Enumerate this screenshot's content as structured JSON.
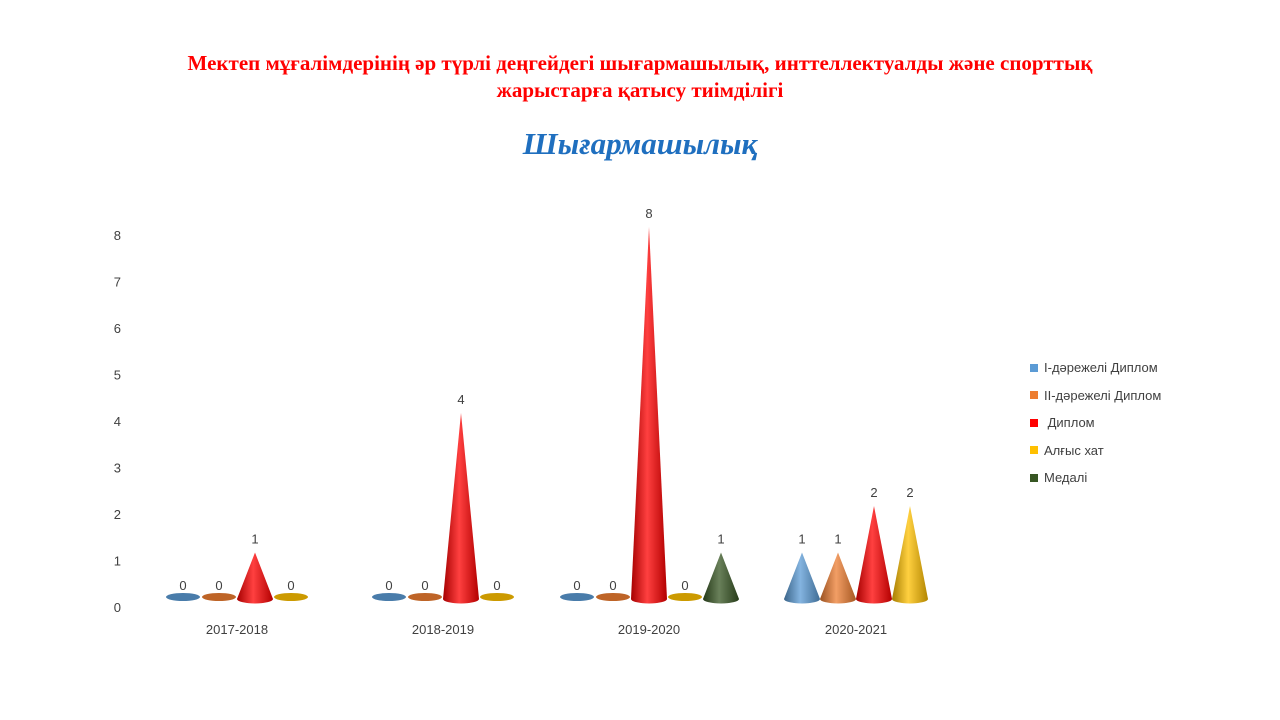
{
  "title_lines": [
    "Мектеп мұғалімдерінің әр түрлі деңгейдегі шығармашылық, инттеллектуалды және спорттық",
    "жарыстарға қатысу тиімділігі"
  ],
  "chart_data": {
    "type": "bar",
    "title": "Шығармашылық",
    "categories": [
      "2017-2018",
      "2018-2019",
      "2019-2020",
      "2020-2021"
    ],
    "y_ticks": [
      0,
      1,
      2,
      3,
      4,
      5,
      6,
      7,
      8
    ],
    "ylim": [
      0,
      8
    ],
    "legend_position": "right",
    "series": [
      {
        "name": "I-дәрежелі Диплом",
        "color": "#5b9bd5",
        "values": [
          0,
          0,
          0,
          1
        ]
      },
      {
        "name": "II-дәрежелі Диплом",
        "color": "#ed7d31",
        "values": [
          0,
          0,
          0,
          1
        ]
      },
      {
        "name": " Диплом",
        "color": "#ff0000",
        "values": [
          1,
          4,
          8,
          2
        ]
      },
      {
        "name": "Алғыс хат",
        "color": "#ffc000",
        "values": [
          0,
          0,
          0,
          2
        ]
      },
      {
        "name": "Медалі",
        "color": "#375623",
        "values": [
          null,
          null,
          1,
          null
        ]
      }
    ]
  }
}
